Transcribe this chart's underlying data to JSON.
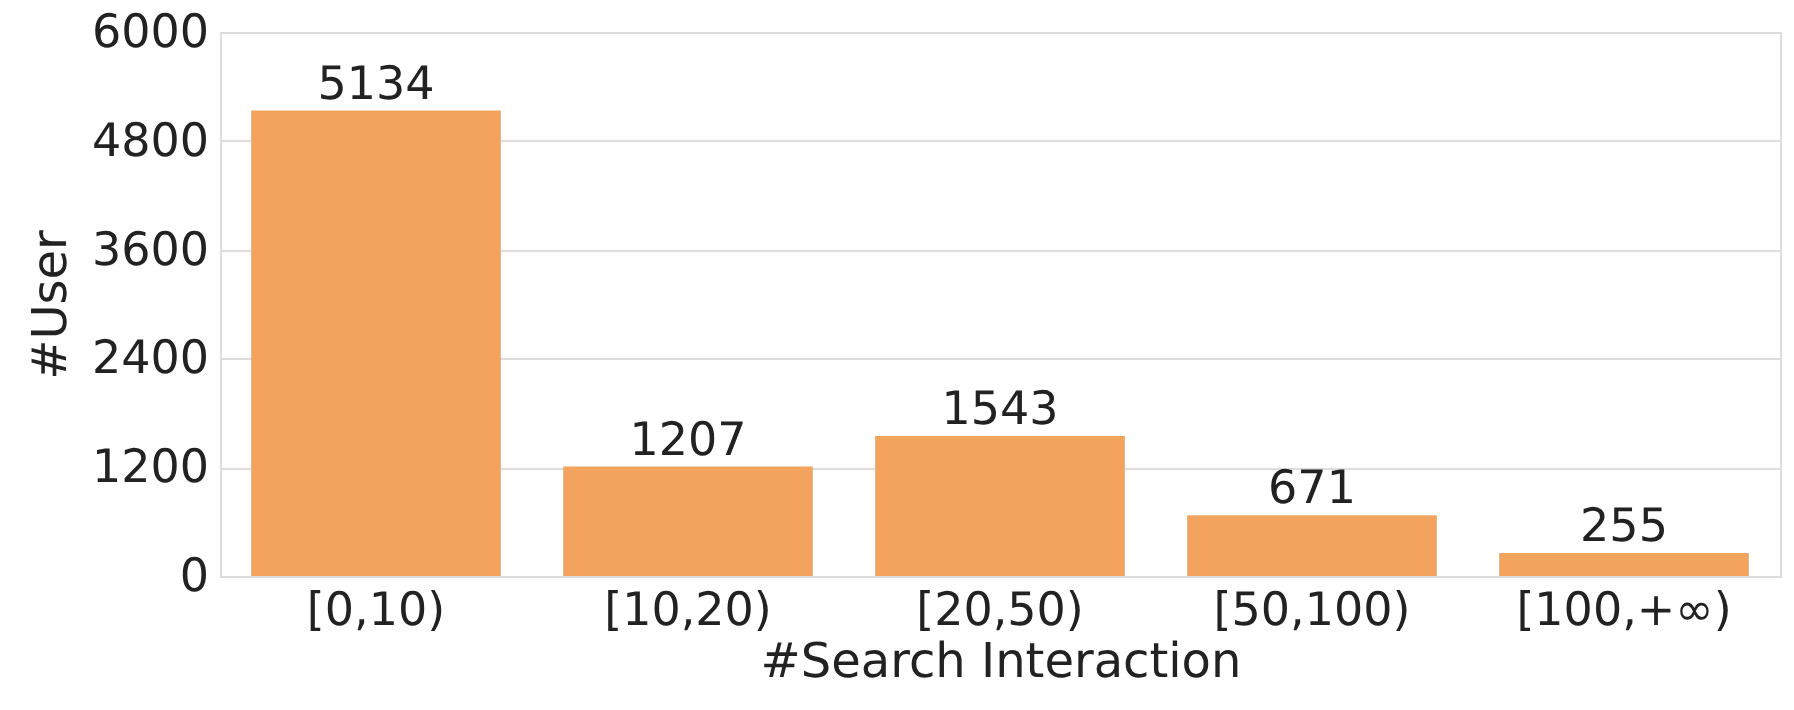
{
  "chart_data": {
    "type": "bar",
    "xlabel": "#Search Interaction",
    "ylabel": "#User",
    "categories": [
      "[0,10)",
      "[10,20)",
      "[20,50)",
      "[50,100)",
      "[100,+∞)"
    ],
    "values": [
      5134,
      1207,
      1543,
      671,
      255
    ],
    "color": "#f2a35e",
    "ylim": [
      0,
      6000
    ],
    "yticks": [
      0,
      1200,
      2400,
      3600,
      4800,
      6000
    ],
    "grid": "y",
    "data_labels": true
  }
}
